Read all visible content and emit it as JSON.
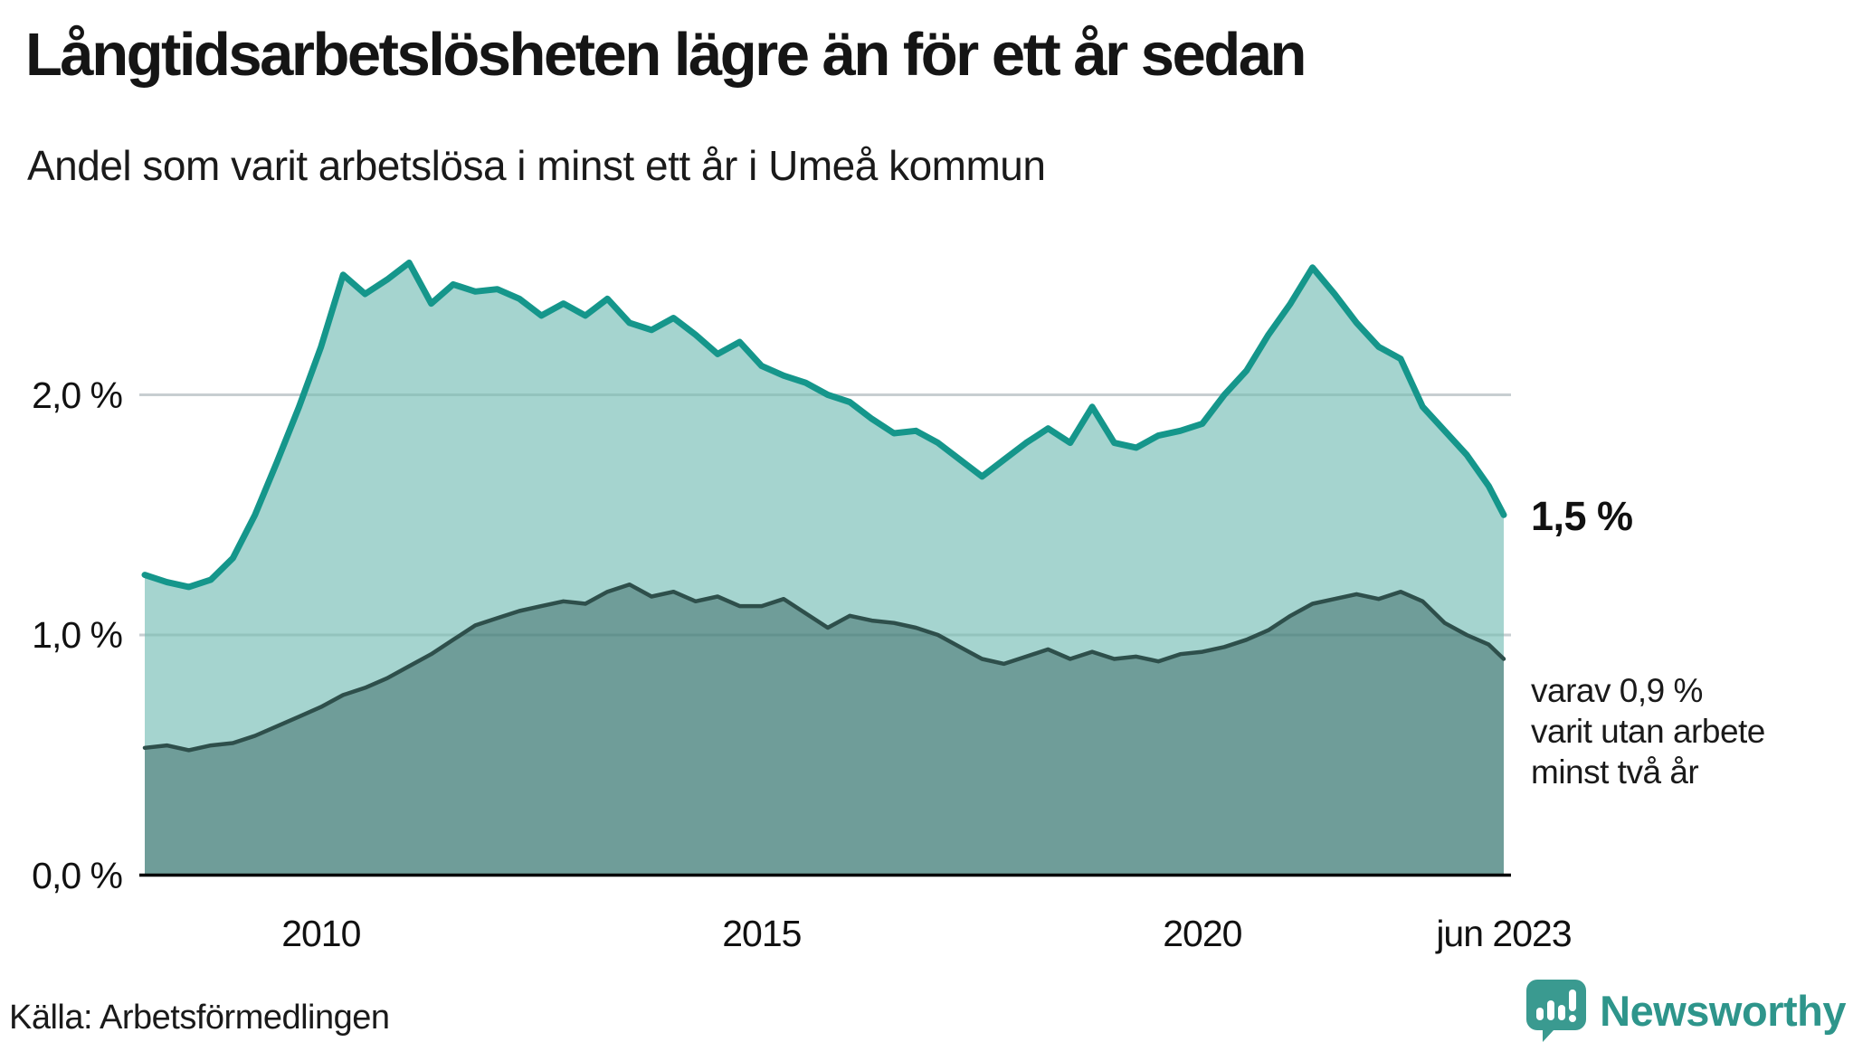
{
  "header": {
    "title": "Långtidsarbetslösheten lägre än för ett år sedan",
    "subtitle": "Andel som varit arbetslösa i minst ett år i Umeå kommun"
  },
  "chart_data": {
    "type": "area",
    "title": "Långtidsarbetslösheten lägre än för ett år sedan",
    "subtitle": "Andel som varit arbetslösa i minst ett år i Umeå kommun",
    "unit": "%",
    "x": [
      2008.0,
      2008.25,
      2008.5,
      2008.75,
      2009.0,
      2009.25,
      2009.5,
      2009.75,
      2010.0,
      2010.25,
      2010.5,
      2010.75,
      2011.0,
      2011.25,
      2011.5,
      2011.75,
      2012.0,
      2012.25,
      2012.5,
      2012.75,
      2013.0,
      2013.25,
      2013.5,
      2013.75,
      2014.0,
      2014.25,
      2014.5,
      2014.75,
      2015.0,
      2015.25,
      2015.5,
      2015.75,
      2016.0,
      2016.25,
      2016.5,
      2016.75,
      2017.0,
      2017.25,
      2017.5,
      2017.75,
      2018.0,
      2018.25,
      2018.5,
      2018.75,
      2019.0,
      2019.25,
      2019.5,
      2019.75,
      2020.0,
      2020.25,
      2020.5,
      2020.75,
      2021.0,
      2021.25,
      2021.5,
      2021.75,
      2022.0,
      2022.25,
      2022.5,
      2022.75,
      2023.0,
      2023.25,
      2023.42
    ],
    "series": [
      {
        "name": "Andel som varit arbetslösa i minst ett år",
        "end_value": "1,5 %",
        "line_color": "#15968b",
        "fill_color": "#a5d4cf",
        "values": [
          1.25,
          1.22,
          1.2,
          1.23,
          1.32,
          1.5,
          1.72,
          1.95,
          2.2,
          2.5,
          2.42,
          2.48,
          2.55,
          2.38,
          2.46,
          2.43,
          2.44,
          2.4,
          2.33,
          2.38,
          2.33,
          2.4,
          2.3,
          2.27,
          2.32,
          2.25,
          2.17,
          2.22,
          2.12,
          2.08,
          2.05,
          2.0,
          1.97,
          1.9,
          1.84,
          1.85,
          1.8,
          1.73,
          1.66,
          1.73,
          1.8,
          1.86,
          1.8,
          1.95,
          1.8,
          1.78,
          1.83,
          1.85,
          1.88,
          2.0,
          2.1,
          2.25,
          2.38,
          2.53,
          2.42,
          2.3,
          2.2,
          2.15,
          1.95,
          1.85,
          1.75,
          1.62,
          1.5
        ]
      },
      {
        "name": "varav varit utan arbete minst två år",
        "end_value": "0,9 %",
        "line_color": "#2e4f4b",
        "fill_color": "#6f9d99",
        "values": [
          0.53,
          0.54,
          0.52,
          0.54,
          0.55,
          0.58,
          0.62,
          0.66,
          0.7,
          0.75,
          0.78,
          0.82,
          0.87,
          0.92,
          0.98,
          1.04,
          1.07,
          1.1,
          1.12,
          1.14,
          1.13,
          1.18,
          1.21,
          1.16,
          1.18,
          1.14,
          1.16,
          1.12,
          1.12,
          1.15,
          1.09,
          1.03,
          1.08,
          1.06,
          1.05,
          1.03,
          1.0,
          0.95,
          0.9,
          0.88,
          0.91,
          0.94,
          0.9,
          0.93,
          0.9,
          0.91,
          0.89,
          0.92,
          0.93,
          0.95,
          0.98,
          1.02,
          1.08,
          1.13,
          1.15,
          1.17,
          1.15,
          1.18,
          1.14,
          1.05,
          1.0,
          0.96,
          0.9
        ]
      }
    ],
    "xlim": [
      2008.0,
      2023.42
    ],
    "ylim": [
      0,
      2.7
    ],
    "grid": "horizontal",
    "legend_position": "none",
    "y_ticks": [
      {
        "label": "0,0 %",
        "value": 0
      },
      {
        "label": "1,0 %",
        "value": 1
      },
      {
        "label": "2,0 %",
        "value": 2
      }
    ],
    "x_ticks": [
      {
        "label": "2010",
        "value": 2010
      },
      {
        "label": "2015",
        "value": 2015
      },
      {
        "label": "2020",
        "value": 2020
      },
      {
        "label": "jun 2023",
        "value": 2023.42
      }
    ],
    "annotations": {
      "end_value_label": "1,5 %",
      "end_value_series": 0,
      "sub_label": "varav 0,9 %\nvarit utan arbete\nminst två år",
      "sub_label_series": 1
    }
  },
  "colors": {
    "accent_teal": "#15968b",
    "light_fill": "#a5d4cf",
    "dark_fill": "#6f9d99",
    "dark_line": "#2e4f4b",
    "gridline": "#e1e1e5",
    "axis": "#000000",
    "brand_teal": "#2e958b"
  },
  "footer": {
    "source": "Källa: Arbetsförmedlingen",
    "brand_name": "Newsworthy"
  }
}
